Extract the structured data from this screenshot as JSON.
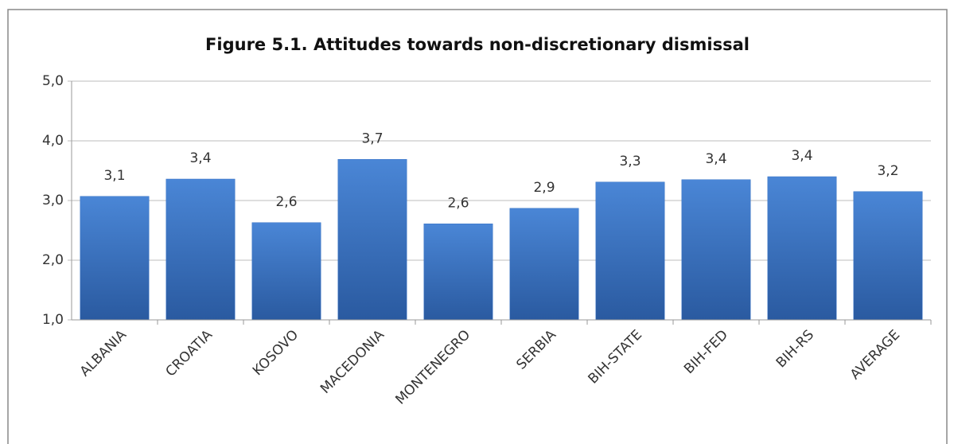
{
  "chart_data": {
    "type": "bar",
    "title": "Figure 5.1. Attitudes towards non-discretionary dismissal",
    "categories": [
      "ALBANIA",
      "CROATIA",
      "KOSOVO",
      "MACEDONIA",
      "MONTENEGRO",
      "SERBIA",
      "BIH-STATE",
      "BIH-FED",
      "BIH-RS",
      "AVERAGE"
    ],
    "values": [
      3.07,
      3.36,
      2.63,
      3.69,
      2.61,
      2.87,
      3.31,
      3.35,
      3.4,
      3.15
    ],
    "value_labels": [
      "3,1",
      "3,4",
      "2,6",
      "3,7",
      "2,6",
      "2,9",
      "3,3",
      "3,4",
      "3,4",
      "3,2"
    ],
    "color": "#3a74c6",
    "ylim": [
      1,
      5
    ],
    "yticks": [
      {
        "value": 1,
        "label": "1,0"
      },
      {
        "value": 2,
        "label": "2,0"
      },
      {
        "value": 3,
        "label": "3,0"
      },
      {
        "value": 4,
        "label": "4,0"
      },
      {
        "value": 5,
        "label": "5,0"
      }
    ],
    "grid": true
  }
}
